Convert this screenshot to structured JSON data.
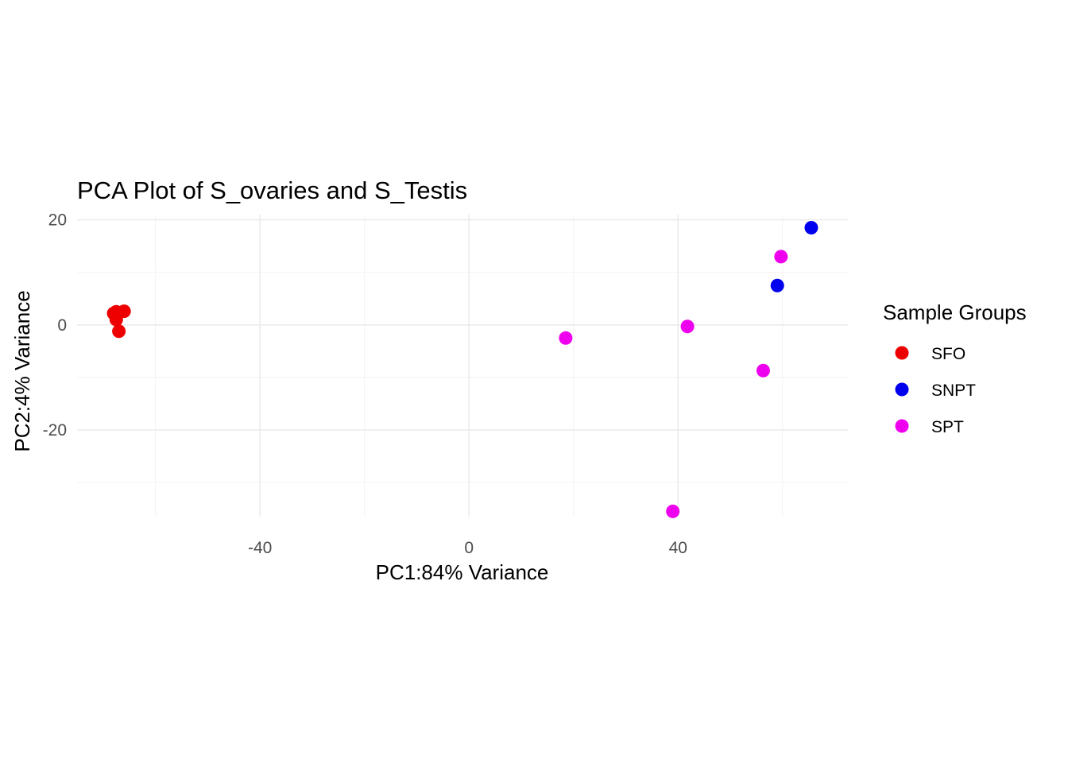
{
  "chart_data": {
    "type": "scatter",
    "title": "PCA Plot of S_ovaries and S_Testis",
    "xlabel": "PC1:84% Variance",
    "ylabel": "PC2:4% Variance",
    "xlim": [
      -75.0,
      72.5
    ],
    "ylim": [
      -36.5,
      21.0
    ],
    "x_ticks": [
      -40,
      0,
      40
    ],
    "x_tick_labels": [
      "-40",
      "0",
      "40"
    ],
    "x_minor_ticks": [
      -60,
      -20,
      20,
      60
    ],
    "y_ticks": [
      -20,
      0,
      20
    ],
    "y_tick_labels": [
      "-20",
      "0",
      "20"
    ],
    "y_minor_ticks": [
      -30,
      -10,
      10
    ],
    "grid": true,
    "legend": {
      "title": "Sample Groups",
      "placement": "right"
    },
    "series": [
      {
        "name": "SFO",
        "color": "#ee0000",
        "points": [
          {
            "x": -68.0,
            "y": 2.2
          },
          {
            "x": -67.5,
            "y": 2.5
          },
          {
            "x": -67.0,
            "y": 2.3
          },
          {
            "x": -66.0,
            "y": 2.6
          },
          {
            "x": -67.5,
            "y": 1.0
          },
          {
            "x": -67.0,
            "y": -1.2
          }
        ]
      },
      {
        "name": "SNPT",
        "color": "#0000ee",
        "points": [
          {
            "x": 65.5,
            "y": 18.5
          },
          {
            "x": 59.0,
            "y": 7.5
          }
        ]
      },
      {
        "name": "SPT",
        "color": "#ee00ee",
        "points": [
          {
            "x": 59.7,
            "y": 13.0
          },
          {
            "x": 18.5,
            "y": -2.5
          },
          {
            "x": 41.8,
            "y": -0.3
          },
          {
            "x": 56.3,
            "y": -8.7
          },
          {
            "x": 39.0,
            "y": -35.5
          }
        ]
      }
    ]
  }
}
